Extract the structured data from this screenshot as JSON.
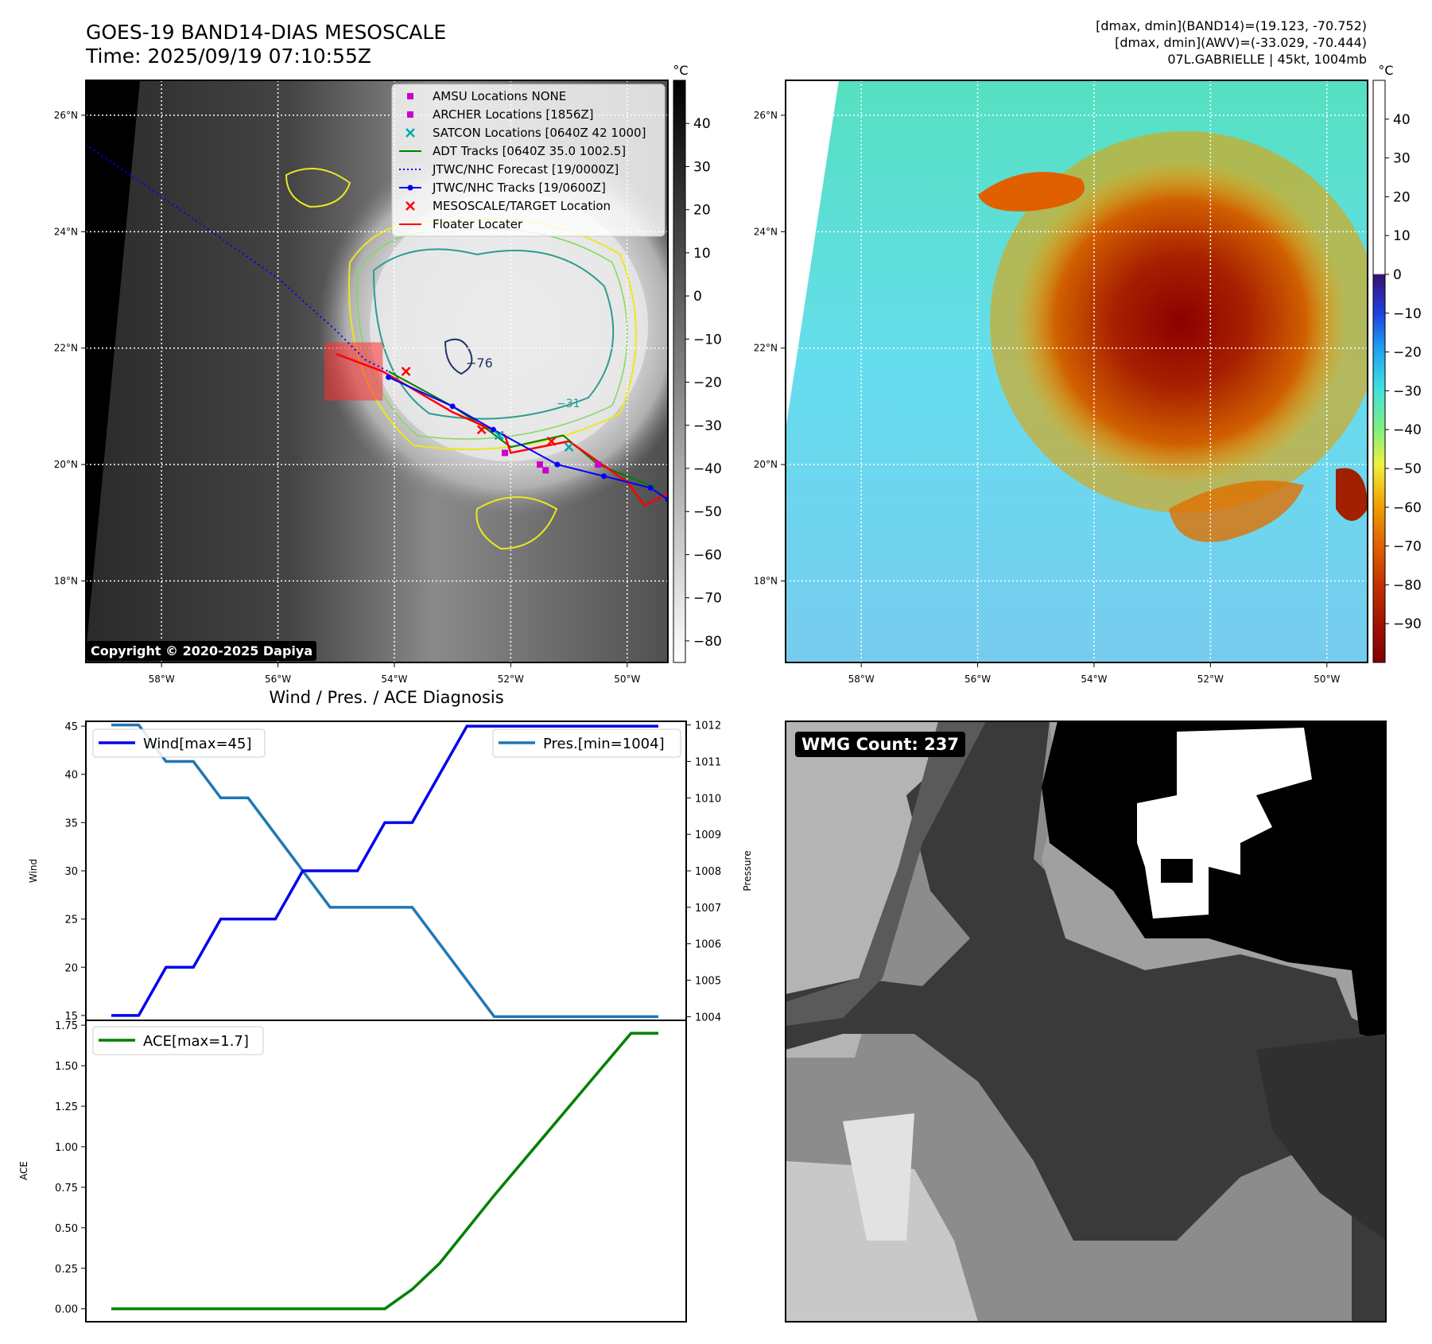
{
  "header": {
    "title_line1": "GOES-19 BAND14-DIAS MESOSCALE",
    "title_line2": "Time: 2025/09/19 07:10:55Z",
    "info_line1": "[dmax, dmin](BAND14)=(19.123, -70.752)",
    "info_line2": "[dmax, dmin](AWV)=(-33.029, -70.444)",
    "info_line3": "07L.GABRIELLE | 45kt, 1004mb"
  },
  "maps": {
    "lon_ticks": [
      "58°W",
      "56°W",
      "54°W",
      "52°W",
      "50°W"
    ],
    "lat_ticks": [
      "26°N",
      "24°N",
      "22°N",
      "20°N",
      "18°N"
    ],
    "lon_values": [
      -58,
      -56,
      -54,
      -52,
      -50
    ],
    "lat_values": [
      26,
      24,
      22,
      20,
      18
    ],
    "lon_range": [
      -59.3,
      -49.3
    ],
    "lat_range": [
      16.6,
      26.6
    ],
    "left_colorbar_unit": "°C",
    "left_colorbar_ticks": [
      "40",
      "30",
      "20",
      "10",
      "0",
      "−10",
      "−20",
      "−30",
      "−40",
      "−50",
      "−60",
      "−70",
      "−80"
    ],
    "left_colorbar_values": [
      40,
      30,
      20,
      10,
      0,
      -10,
      -20,
      -30,
      -40,
      -50,
      -60,
      -70,
      -80
    ],
    "left_colorbar_range": [
      -85,
      50
    ],
    "right_colorbar_unit": "°C",
    "right_colorbar_ticks": [
      "40",
      "30",
      "20",
      "10",
      "0",
      "−10",
      "−20",
      "−30",
      "−40",
      "−50",
      "−60",
      "−70",
      "−80",
      "−90"
    ],
    "right_colorbar_values": [
      40,
      30,
      20,
      10,
      0,
      -10,
      -20,
      -30,
      -40,
      -50,
      -60,
      -70,
      -80,
      -90
    ],
    "right_colorbar_range": [
      -100,
      50
    ],
    "copyright": "Copyright © 2020-2025 Dapiya",
    "contour_label_1": "−76",
    "contour_label_2": "−31",
    "legend": [
      {
        "label": "AMSU Locations NONE",
        "kind": "square",
        "color": "#cc00cc"
      },
      {
        "label": "ARCHER Locations [1856Z]",
        "kind": "square",
        "color": "#cc00cc"
      },
      {
        "label": "SATCON Locations [0640Z 42 1000]",
        "kind": "x",
        "color": "#00aaaa"
      },
      {
        "label": "ADT Tracks [0640Z 35.0 1002.5]",
        "kind": "line",
        "color": "#008000"
      },
      {
        "label": "JTWC/NHC Forecast [19/0000Z]",
        "kind": "dotted",
        "color": "#0000ff"
      },
      {
        "label": "JTWC/NHC Tracks [19/0600Z]",
        "kind": "line-dot",
        "color": "#0000ff"
      },
      {
        "label": "MESOSCALE/TARGET Location",
        "kind": "x",
        "color": "#ff0000"
      },
      {
        "label": "Floater Locater",
        "kind": "line",
        "color": "#ff0000"
      }
    ],
    "tracks": {
      "jtwc_forecast": [
        [
          -59.3,
          25.5
        ],
        [
          -58,
          24.6
        ],
        [
          -57,
          23.9
        ],
        [
          -56,
          23.2
        ],
        [
          -55,
          22.3
        ],
        [
          -54.5,
          21.8
        ],
        [
          -54.1,
          21.6
        ]
      ],
      "jtwc_track": [
        [
          -54.1,
          21.5
        ],
        [
          -53,
          21.0
        ],
        [
          -52.3,
          20.6
        ],
        [
          -51.2,
          20.0
        ],
        [
          -50.4,
          19.8
        ],
        [
          -49.6,
          19.6
        ],
        [
          -49.3,
          19.4
        ]
      ],
      "adt_track": [
        [
          -54.1,
          21.6
        ],
        [
          -53,
          21.0
        ],
        [
          -52.4,
          20.6
        ],
        [
          -52,
          20.3
        ],
        [
          -51.1,
          20.5
        ],
        [
          -50.5,
          20.0
        ],
        [
          -49.5,
          19.6
        ]
      ],
      "floater": [
        [
          -55,
          21.9
        ],
        [
          -54.2,
          21.6
        ],
        [
          -53,
          20.9
        ],
        [
          -52.1,
          20.5
        ],
        [
          -52,
          20.2
        ],
        [
          -51,
          20.4
        ],
        [
          -50,
          19.7
        ],
        [
          -49.7,
          19.3
        ],
        [
          -49.3,
          19.5
        ]
      ],
      "archer_points": [
        [
          -52.1,
          20.2
        ],
        [
          -51.5,
          20.0
        ],
        [
          -51.4,
          19.9
        ],
        [
          -50.5,
          20.0
        ]
      ],
      "satcon_points": [
        [
          -52.2,
          20.5
        ],
        [
          -51,
          20.3
        ]
      ],
      "target_points": [
        [
          -53.8,
          21.6
        ],
        [
          -51.3,
          20.4
        ],
        [
          -52.5,
          20.6
        ]
      ],
      "floater_box": {
        "lon": [
          -55.2,
          -54.2
        ],
        "lat": [
          21.1,
          22.1
        ]
      }
    }
  },
  "chart_data": [
    {
      "type": "line",
      "title": "Wind / Pres. / ACE Diagnosis",
      "x": [
        0,
        1,
        2,
        3,
        4,
        5,
        6,
        7,
        8,
        9,
        10,
        11,
        12,
        13,
        14,
        15,
        16,
        17,
        18,
        19,
        20
      ],
      "series": [
        {
          "name": "Wind[max=45]",
          "axis": "left",
          "color": "#0000ee",
          "values": [
            15,
            15,
            20,
            20,
            25,
            25,
            25,
            30,
            30,
            30,
            35,
            35,
            40,
            45,
            45,
            45,
            45,
            45,
            45,
            45,
            45
          ]
        },
        {
          "name": "Pres.[min=1004]",
          "axis": "right",
          "color": "#1f77b4",
          "values": [
            1012,
            1012,
            1011,
            1011,
            1010,
            1010,
            1009,
            1008,
            1007,
            1007,
            1007,
            1007,
            1006,
            1005,
            1004,
            1004,
            1004,
            1004,
            1004,
            1004,
            1004
          ]
        }
      ],
      "ylabel": "Wind",
      "ylim": [
        14.5,
        45.5
      ],
      "yticks": [
        15,
        20,
        25,
        30,
        35,
        40,
        45
      ],
      "y2label": "Pressure",
      "y2lim": [
        1003.9,
        1012.1
      ],
      "y2ticks": [
        1004,
        1005,
        1006,
        1007,
        1008,
        1009,
        1010,
        1011,
        1012
      ],
      "legend": [
        "top-left",
        "top-right"
      ]
    },
    {
      "type": "line",
      "x": [
        0,
        1,
        2,
        3,
        4,
        5,
        6,
        7,
        8,
        9,
        10,
        11,
        12,
        13,
        14,
        15,
        16,
        17,
        18,
        19,
        20
      ],
      "series": [
        {
          "name": "ACE[max=1.7]",
          "color": "#008000",
          "values": [
            0,
            0,
            0,
            0,
            0,
            0,
            0,
            0,
            0,
            0,
            0,
            0.12,
            0.28,
            0.49,
            0.7,
            0.9,
            1.1,
            1.3,
            1.5,
            1.7,
            1.7
          ]
        }
      ],
      "ylabel": "ACE",
      "ylim": [
        -0.08,
        1.78
      ],
      "yticks": [
        0.0,
        0.25,
        0.5,
        0.75,
        1.0,
        1.25,
        1.5,
        1.75
      ],
      "ytick_labels": [
        "0.00",
        "0.25",
        "0.50",
        "0.75",
        "1.00",
        "1.25",
        "1.50",
        "1.75"
      ],
      "legend": "top-left"
    }
  ],
  "wmg": {
    "label": "WMG Count: 237"
  }
}
